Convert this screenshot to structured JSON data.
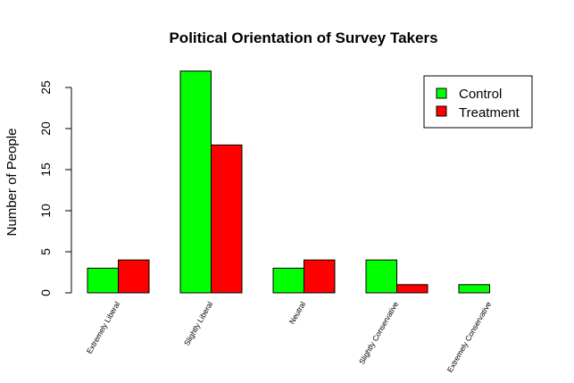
{
  "chart_data": {
    "type": "bar",
    "title": "Political Orientation of Survey Takers",
    "xlabel": "",
    "ylabel": "Number of People",
    "ylim": [
      0,
      27
    ],
    "yticks": [
      0,
      5,
      10,
      15,
      20,
      25
    ],
    "categories": [
      "Extremely Liberal",
      "Slightly Liberal",
      "Neutral",
      "Slightly Conservative",
      "Extremely Conservative"
    ],
    "series": [
      {
        "name": "Control",
        "color": "#00ff00",
        "values": [
          3,
          27,
          3,
          4,
          1
        ]
      },
      {
        "name": "Treatment",
        "color": "#ff0000",
        "values": [
          4,
          18,
          4,
          1,
          0
        ]
      }
    ],
    "legend_position": "top-right",
    "grid": false
  }
}
